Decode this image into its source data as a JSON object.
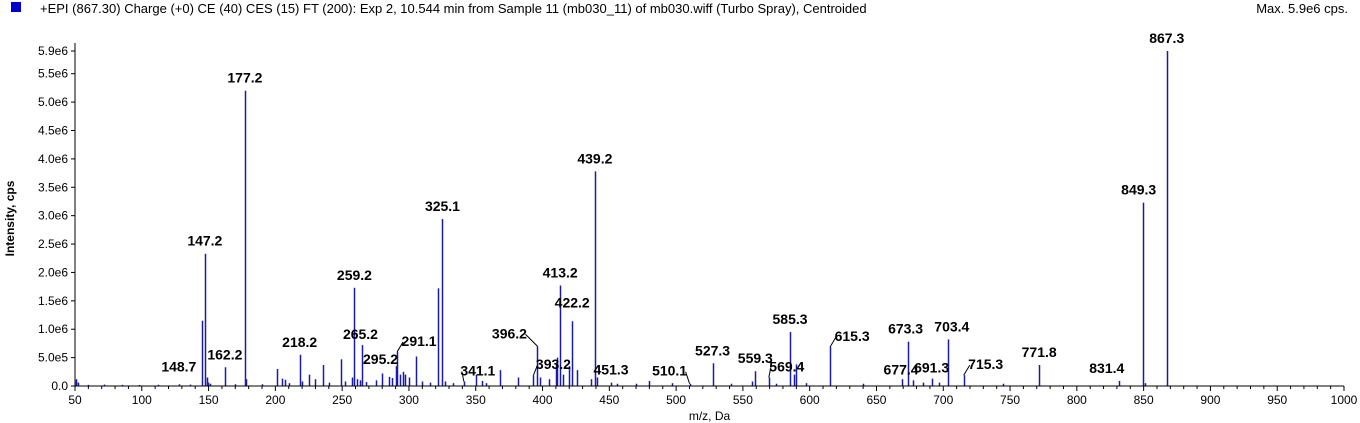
{
  "header": {
    "title": "+EPI (867.30) Charge (+0) CE (40) CES (15) FT (200): Exp 2, 10.544 min from Sample 11 (mb030_11) of mb030.wiff (Turbo Spray), Centroided",
    "max": "Max. 5.9e6 cps."
  },
  "colors": {
    "series": "#1a1aa8",
    "swatch": "#0000cc"
  },
  "chart_data": {
    "type": "bar",
    "xlabel": "m/z, Da",
    "ylabel": "Intensity, cps",
    "xlim": [
      50,
      1000
    ],
    "ylim": [
      0,
      5900000.0
    ],
    "xticks": [
      50,
      100,
      150,
      200,
      250,
      300,
      350,
      400,
      450,
      500,
      550,
      600,
      650,
      700,
      750,
      800,
      850,
      900,
      950,
      1000
    ],
    "xtick_labels": [
      "50",
      "100",
      "150",
      "200",
      "250",
      "300",
      "350",
      "400",
      "450",
      "500",
      "550",
      "600",
      "650",
      "700",
      "750",
      "800",
      "850",
      "900",
      "950",
      "1000"
    ],
    "yticks": [
      0,
      500000.0,
      1000000.0,
      1500000.0,
      2000000.0,
      2500000.0,
      3000000.0,
      3500000.0,
      4000000.0,
      4500000.0,
      5000000.0,
      5500000.0,
      5900000.0
    ],
    "ytick_labels": [
      "0.0",
      "5.0e5",
      "1.0e6",
      "1.5e6",
      "2.0e6",
      "2.5e6",
      "3.0e6",
      "3.5e6",
      "4.0e6",
      "4.5e6",
      "5.0e6",
      "5.5e6",
      "5.9e6"
    ],
    "peaks": [
      {
        "mz": 50.5,
        "intensity": 120000
      },
      {
        "mz": 51,
        "intensity": 80000
      },
      {
        "mz": 52,
        "intensity": 60000
      },
      {
        "mz": 60,
        "intensity": 20000
      },
      {
        "mz": 72,
        "intensity": 25000
      },
      {
        "mz": 85,
        "intensity": 20000
      },
      {
        "mz": 98,
        "intensity": 18000
      },
      {
        "mz": 112,
        "intensity": 22000
      },
      {
        "mz": 128,
        "intensity": 30000
      },
      {
        "mz": 136,
        "intensity": 25000
      },
      {
        "mz": 145,
        "intensity": 1150000
      },
      {
        "mz": 147.2,
        "intensity": 2330000
      },
      {
        "mz": 148.7,
        "intensity": 150000
      },
      {
        "mz": 149.5,
        "intensity": 60000
      },
      {
        "mz": 151,
        "intensity": 40000
      },
      {
        "mz": 162.2,
        "intensity": 330000
      },
      {
        "mz": 170,
        "intensity": 30000
      },
      {
        "mz": 177.2,
        "intensity": 5200000
      },
      {
        "mz": 178.3,
        "intensity": 120000
      },
      {
        "mz": 190,
        "intensity": 30000
      },
      {
        "mz": 201,
        "intensity": 300000
      },
      {
        "mz": 205,
        "intensity": 130000
      },
      {
        "mz": 207,
        "intensity": 110000
      },
      {
        "mz": 210,
        "intensity": 50000
      },
      {
        "mz": 218.2,
        "intensity": 550000
      },
      {
        "mz": 220,
        "intensity": 80000
      },
      {
        "mz": 225,
        "intensity": 200000
      },
      {
        "mz": 230,
        "intensity": 120000
      },
      {
        "mz": 236,
        "intensity": 370000
      },
      {
        "mz": 240,
        "intensity": 60000
      },
      {
        "mz": 249,
        "intensity": 470000
      },
      {
        "mz": 252,
        "intensity": 80000
      },
      {
        "mz": 257,
        "intensity": 150000
      },
      {
        "mz": 259.2,
        "intensity": 1730000
      },
      {
        "mz": 261,
        "intensity": 120000
      },
      {
        "mz": 263,
        "intensity": 100000
      },
      {
        "mz": 265.2,
        "intensity": 720000
      },
      {
        "mz": 268,
        "intensity": 70000
      },
      {
        "mz": 275,
        "intensity": 100000
      },
      {
        "mz": 280,
        "intensity": 220000
      },
      {
        "mz": 285,
        "intensity": 160000
      },
      {
        "mz": 287,
        "intensity": 140000
      },
      {
        "mz": 290,
        "intensity": 350000
      },
      {
        "mz": 291.1,
        "intensity": 600000
      },
      {
        "mz": 293,
        "intensity": 200000
      },
      {
        "mz": 295.2,
        "intensity": 250000
      },
      {
        "mz": 297,
        "intensity": 200000
      },
      {
        "mz": 300,
        "intensity": 150000
      },
      {
        "mz": 305,
        "intensity": 520000
      },
      {
        "mz": 310,
        "intensity": 80000
      },
      {
        "mz": 316,
        "intensity": 60000
      },
      {
        "mz": 322,
        "intensity": 1720000
      },
      {
        "mz": 325.1,
        "intensity": 2940000
      },
      {
        "mz": 327,
        "intensity": 80000
      },
      {
        "mz": 333,
        "intensity": 50000
      },
      {
        "mz": 341.1,
        "intensity": 80000
      },
      {
        "mz": 350,
        "intensity": 200000
      },
      {
        "mz": 355,
        "intensity": 90000
      },
      {
        "mz": 358,
        "intensity": 50000
      },
      {
        "mz": 368,
        "intensity": 280000
      },
      {
        "mz": 382,
        "intensity": 150000
      },
      {
        "mz": 393.2,
        "intensity": 190000
      },
      {
        "mz": 396.2,
        "intensity": 700000
      },
      {
        "mz": 398,
        "intensity": 150000
      },
      {
        "mz": 405,
        "intensity": 120000
      },
      {
        "mz": 410,
        "intensity": 380000
      },
      {
        "mz": 411,
        "intensity": 500000
      },
      {
        "mz": 413.2,
        "intensity": 1770000
      },
      {
        "mz": 415,
        "intensity": 200000
      },
      {
        "mz": 420,
        "intensity": 350000
      },
      {
        "mz": 422.2,
        "intensity": 1140000
      },
      {
        "mz": 426,
        "intensity": 280000
      },
      {
        "mz": 436,
        "intensity": 120000
      },
      {
        "mz": 439.2,
        "intensity": 3780000
      },
      {
        "mz": 441,
        "intensity": 150000
      },
      {
        "mz": 451.3,
        "intensity": 60000
      },
      {
        "mz": 456,
        "intensity": 40000
      },
      {
        "mz": 470,
        "intensity": 40000
      },
      {
        "mz": 480,
        "intensity": 90000
      },
      {
        "mz": 497,
        "intensity": 50000
      },
      {
        "mz": 510.1,
        "intensity": 40000
      },
      {
        "mz": 527.3,
        "intensity": 400000
      },
      {
        "mz": 541,
        "intensity": 40000
      },
      {
        "mz": 557,
        "intensity": 80000
      },
      {
        "mz": 559.3,
        "intensity": 260000
      },
      {
        "mz": 569.4,
        "intensity": 150000
      },
      {
        "mz": 575,
        "intensity": 40000
      },
      {
        "mz": 585.3,
        "intensity": 950000
      },
      {
        "mz": 588,
        "intensity": 200000
      },
      {
        "mz": 590,
        "intensity": 380000
      },
      {
        "mz": 597,
        "intensity": 50000
      },
      {
        "mz": 615.3,
        "intensity": 690000
      },
      {
        "mz": 640,
        "intensity": 40000
      },
      {
        "mz": 669,
        "intensity": 120000
      },
      {
        "mz": 673.3,
        "intensity": 780000
      },
      {
        "mz": 677.4,
        "intensity": 100000
      },
      {
        "mz": 685,
        "intensity": 60000
      },
      {
        "mz": 691.3,
        "intensity": 130000
      },
      {
        "mz": 697,
        "intensity": 60000
      },
      {
        "mz": 703.4,
        "intensity": 820000
      },
      {
        "mz": 715.3,
        "intensity": 190000
      },
      {
        "mz": 745,
        "intensity": 40000
      },
      {
        "mz": 771.8,
        "intensity": 370000
      },
      {
        "mz": 831.4,
        "intensity": 90000
      },
      {
        "mz": 849.3,
        "intensity": 3230000
      },
      {
        "mz": 851,
        "intensity": 50000
      },
      {
        "mz": 867.3,
        "intensity": 5900000
      }
    ],
    "annotations": [
      {
        "text": "867.3",
        "mz": 867.3,
        "intensity": 5900000,
        "dx": 0,
        "dy": -8
      },
      {
        "text": "177.2",
        "mz": 177.2,
        "intensity": 5200000,
        "dx": 0,
        "dy": -8
      },
      {
        "text": "439.2",
        "mz": 439.2,
        "intensity": 3780000,
        "dx": 0,
        "dy": -8
      },
      {
        "text": "849.3",
        "mz": 849.3,
        "intensity": 3230000,
        "dx": -4,
        "dy": -8
      },
      {
        "text": "325.1",
        "mz": 325.1,
        "intensity": 2940000,
        "dx": 0,
        "dy": -8
      },
      {
        "text": "147.2",
        "mz": 147.2,
        "intensity": 2330000,
        "dx": 0,
        "dy": -8
      },
      {
        "text": "259.2",
        "mz": 259.2,
        "intensity": 1730000,
        "dx": 0,
        "dy": -8
      },
      {
        "text": "413.2",
        "mz": 413.2,
        "intensity": 1770000,
        "dx": 0,
        "dy": -8
      },
      {
        "text": "422.2",
        "mz": 422.2,
        "intensity": 1140000,
        "dx": 0,
        "dy": -14
      },
      {
        "text": "396.2",
        "mz": 396.2,
        "intensity": 700000,
        "dx": -28,
        "dy": -8,
        "leader": true
      },
      {
        "text": "265.2",
        "mz": 265.2,
        "intensity": 720000,
        "dx": -2,
        "dy": -6
      },
      {
        "text": "218.2",
        "mz": 218.2,
        "intensity": 550000,
        "dx": 0,
        "dy": -8
      },
      {
        "text": "291.1",
        "mz": 291.1,
        "intensity": 600000,
        "dx": 22,
        "dy": -6,
        "leader": true
      },
      {
        "text": "295.2",
        "mz": 295.2,
        "intensity": 250000,
        "dx": -22,
        "dy": -8
      },
      {
        "text": "162.2",
        "mz": 162.2,
        "intensity": 330000,
        "dx": 0,
        "dy": -8
      },
      {
        "text": "148.7",
        "mz": 148.7,
        "intensity": 150000,
        "dx": -28,
        "dy": -6
      },
      {
        "text": "341.1",
        "mz": 341.1,
        "intensity": 80000,
        "dx": 14,
        "dy": -6,
        "leader": true
      },
      {
        "text": "393.2",
        "mz": 393.2,
        "intensity": 190000,
        "dx": 20,
        "dy": -6,
        "leader": true
      },
      {
        "text": "451.3",
        "mz": 451.3,
        "intensity": 60000,
        "dx": 0,
        "dy": -8
      },
      {
        "text": "510.1",
        "mz": 510.1,
        "intensity": 40000,
        "dx": -20,
        "dy": -8,
        "leader": true
      },
      {
        "text": "527.3",
        "mz": 527.3,
        "intensity": 400000,
        "dx": 0,
        "dy": -8
      },
      {
        "text": "559.3",
        "mz": 559.3,
        "intensity": 260000,
        "dx": 0,
        "dy": -8
      },
      {
        "text": "569.4",
        "mz": 569.4,
        "intensity": 150000,
        "dx": 18,
        "dy": -6,
        "leader": true
      },
      {
        "text": "585.3",
        "mz": 585.3,
        "intensity": 950000,
        "dx": 0,
        "dy": -8
      },
      {
        "text": "615.3",
        "mz": 615.3,
        "intensity": 690000,
        "dx": 22,
        "dy": -6,
        "leader": true
      },
      {
        "text": "673.3",
        "mz": 673.3,
        "intensity": 780000,
        "dx": -2,
        "dy": -8
      },
      {
        "text": "703.4",
        "mz": 703.4,
        "intensity": 820000,
        "dx": 4,
        "dy": -8
      },
      {
        "text": "677.4",
        "mz": 677.4,
        "intensity": 100000,
        "dx": -12,
        "dy": -6
      },
      {
        "text": "691.3",
        "mz": 691.3,
        "intensity": 130000,
        "dx": 0,
        "dy": -6
      },
      {
        "text": "715.3",
        "mz": 715.3,
        "intensity": 190000,
        "dx": 22,
        "dy": -6,
        "leader": true
      },
      {
        "text": "771.8",
        "mz": 771.8,
        "intensity": 370000,
        "dx": 0,
        "dy": -8
      },
      {
        "text": "831.4",
        "mz": 831.4,
        "intensity": 90000,
        "dx": -12,
        "dy": -8
      }
    ]
  }
}
